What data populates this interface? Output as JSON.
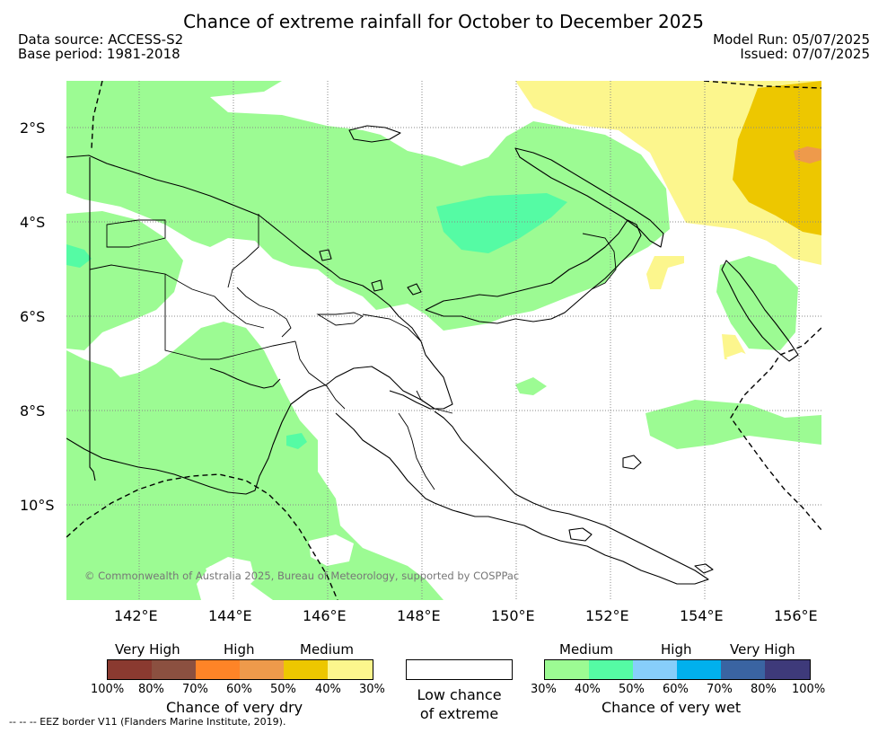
{
  "title": "Chance of extreme rainfall for October to December 2025",
  "data_source": "Data source: ACCESS-S2",
  "base_period": "Base period: 1981-2018",
  "model_run": "Model Run: 05/07/2025",
  "issued": "Issued: 07/07/2025",
  "map": {
    "latitude_labels": [
      "2°S",
      "4°S",
      "6°S",
      "8°S",
      "10°S"
    ],
    "longitude_labels": [
      "142°E",
      "144°E",
      "146°E",
      "148°E",
      "150°E",
      "152°E",
      "154°E",
      "156°E"
    ],
    "credit": "© Commonwealth of Australia 2025, Bureau of Meteorology, supported by COSPPac",
    "colors": {
      "wet_medium": "#9cfb93",
      "wet_medium_high": "#55fba4",
      "dry_30_40": "#fcf68d",
      "dry_40_50": "#edc700",
      "dry_50_60": "#ee9a4b",
      "coastline": "#000000"
    }
  },
  "legend": {
    "dry": {
      "levels": [
        "Very High",
        "High",
        "Medium"
      ],
      "ticks": [
        "100%",
        "80%",
        "70%",
        "60%",
        "50%",
        "40%",
        "30%"
      ],
      "colors": [
        "#8a3a30",
        "#8b5040",
        "#fe8427",
        "#ee9a4b",
        "#edc700",
        "#fcf68d"
      ],
      "caption": "Chance of very dry"
    },
    "neutral": {
      "caption_line1": "Low chance",
      "caption_line2": "of extreme"
    },
    "wet": {
      "levels": [
        "Medium",
        "High",
        "Very High"
      ],
      "ticks": [
        "30%",
        "40%",
        "50%",
        "60%",
        "70%",
        "80%",
        "100%"
      ],
      "colors": [
        "#9cfb93",
        "#55fba4",
        "#87cefa",
        "#01b0ed",
        "#3a64a2",
        "#3e3a7a"
      ],
      "caption": "Chance of very wet"
    }
  },
  "eez_note": "--  --  -- EEZ border V11 (Flanders Marine Institute, 2019)."
}
